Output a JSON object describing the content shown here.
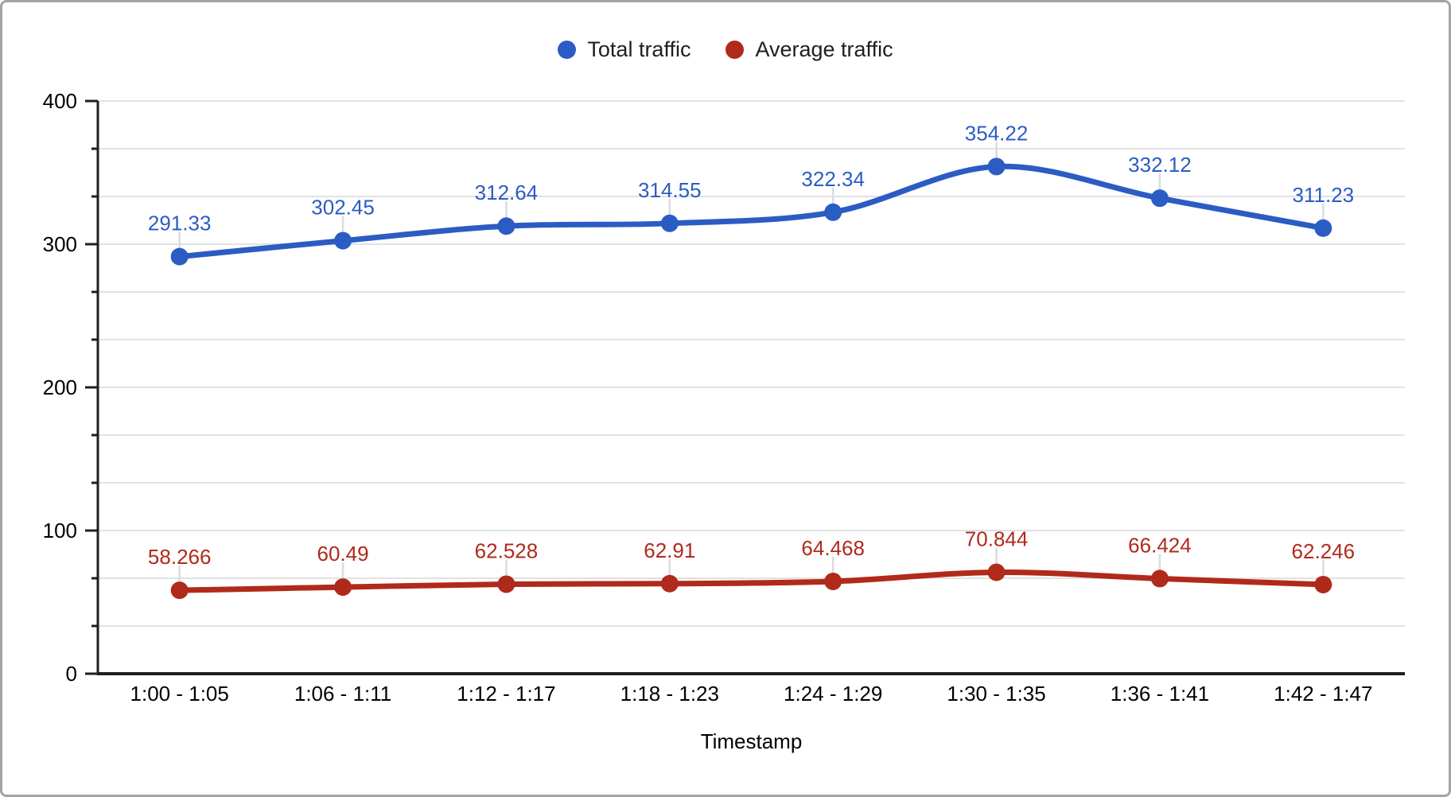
{
  "chart_data": {
    "type": "line",
    "smooth": true,
    "title": "",
    "xlabel": "Timestamp",
    "ylabel": "",
    "ylim": [
      0,
      400
    ],
    "yticks": [
      0,
      100,
      200,
      300,
      400
    ],
    "minor_divisions_per_major": 3,
    "grid": "horizontal",
    "legend_position": "top",
    "categories": [
      "1:00 - 1:05",
      "1:06 - 1:11",
      "1:12 - 1:17",
      "1:18 - 1:23",
      "1:24 - 1:29",
      "1:30 - 1:35",
      "1:36 - 1:41",
      "1:42 - 1:47"
    ],
    "series": [
      {
        "name": "Total traffic",
        "color": "#2b5cc4",
        "values": [
          291.33,
          302.45,
          312.64,
          314.55,
          322.34,
          354.22,
          332.12,
          311.23
        ]
      },
      {
        "name": "Average traffic",
        "color": "#b02a1c",
        "values": [
          58.266,
          60.49,
          62.528,
          62.91,
          64.468,
          70.844,
          66.424,
          62.246
        ]
      }
    ],
    "data_labels_visible": true
  },
  "colors": {
    "gridline": "#e2e2e2",
    "axis": "#1f1f1f",
    "tick_text": "#000000",
    "leader_line": "#dadce0",
    "frame_border": "#a3a3a3",
    "background": "#ffffff"
  }
}
